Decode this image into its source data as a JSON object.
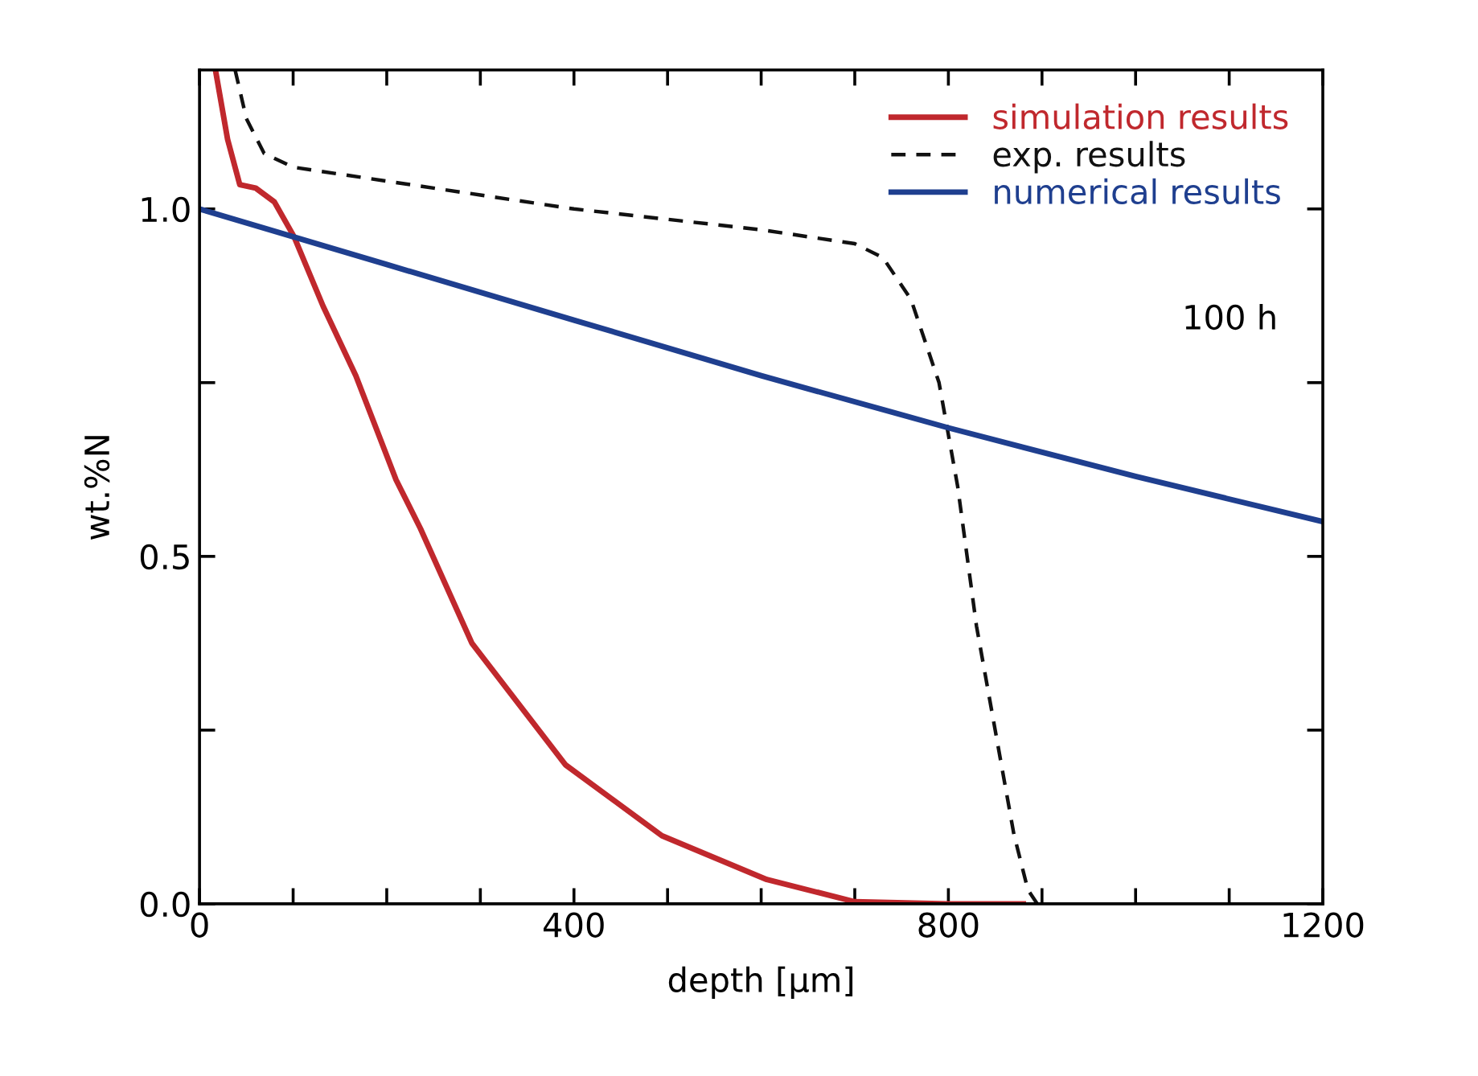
{
  "chart_data": {
    "type": "line",
    "xlabel": "depth [µm]",
    "ylabel": "wt.%N",
    "xlim": [
      0,
      1200
    ],
    "ylim": [
      0,
      1.2
    ],
    "xticks": [
      0,
      {
        "value": 100,
        "label": null
      },
      {
        "value": 200,
        "label": null
      },
      {
        "value": 300,
        "label": null
      },
      400,
      {
        "value": 500,
        "label": null
      },
      {
        "value": 600,
        "label": null
      },
      {
        "value": 700,
        "label": null
      },
      800,
      {
        "value": 900,
        "label": null
      },
      {
        "value": 1000,
        "label": null
      },
      {
        "value": 1100,
        "label": null
      },
      1200
    ],
    "yticks": [
      {
        "value": 0,
        "label": "0.0"
      },
      {
        "value": 0.25,
        "label": null
      },
      {
        "value": 0.5,
        "label": "0.5"
      },
      {
        "value": 0.75,
        "label": null
      },
      {
        "value": 1.0,
        "label": "1.0"
      }
    ],
    "grid": false,
    "legend": "top right",
    "marker": "none",
    "annotations": [
      "100 h"
    ],
    "series": [
      {
        "name": "simulation results",
        "color": "#c0282d",
        "line_style": "solid",
        "x": [
          17,
          30,
          43,
          60,
          80,
          101,
          132,
          167,
          210,
          236,
          291,
          391,
          494,
          606,
          700,
          800,
          880
        ],
        "values": [
          1.2,
          1.1,
          1.035,
          1.03,
          1.01,
          0.96,
          0.86,
          0.76,
          0.61,
          0.54,
          0.375,
          0.2,
          0.098,
          0.035,
          0.003,
          0.0,
          0.0
        ]
      },
      {
        "name": "exp. results",
        "color": "#111111",
        "line_style": "dashed",
        "x": [
          38,
          50,
          69,
          100,
          200,
          300,
          400,
          500,
          600,
          700,
          730,
          760,
          790,
          810,
          830,
          850,
          870,
          885,
          895
        ],
        "values": [
          1.2,
          1.13,
          1.08,
          1.06,
          1.04,
          1.02,
          1.0,
          0.985,
          0.97,
          0.95,
          0.93,
          0.87,
          0.75,
          0.6,
          0.4,
          0.25,
          0.1,
          0.02,
          0.0
        ]
      },
      {
        "name": "numerical results",
        "color": "#1f3f8f",
        "line_style": "solid",
        "x": [
          0,
          200,
          400,
          600,
          800,
          1000,
          1200
        ],
        "values": [
          1.0,
          0.92,
          0.84,
          0.76,
          0.685,
          0.615,
          0.55
        ]
      }
    ]
  }
}
